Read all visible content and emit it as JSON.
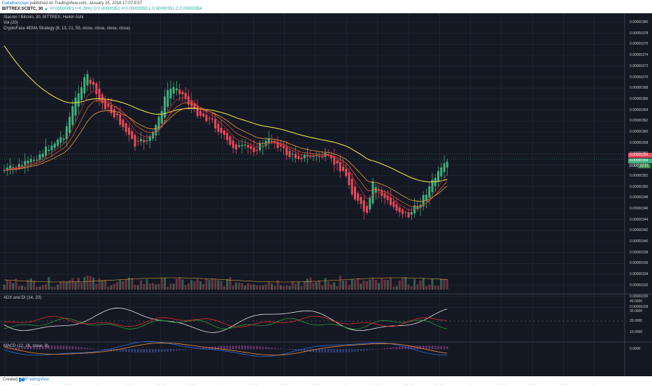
{
  "header": {
    "author": "EakaBarooqai",
    "published_text": "published on TradingView.com, January 25, 2018 17:07 EST",
    "symbol": "BITTREX:SCBTC, 30",
    "change": "▲ +0.00000001 (+0.28%)",
    "ohlc_o": "O:0.00000351",
    "ohlc_h": "H:0.00000355",
    "ohlc_l": "L:0.00000351",
    "ohlc_c": "C:0.00000354"
  },
  "legend": {
    "title": "Siacoin / Bitcoin, 30, BITTREX, Heikin Ashi",
    "vol": "Vol (20)",
    "strategy": "CryptoFace 4EMA Strategy (8, 13, 21, 55, close, close, close, close)"
  },
  "adx_legend": "ADX and DI (14, 20)",
  "macd_legend": "MACD (12, 26, close, 9)",
  "price_axis": [
    "0.00000380",
    "0.00000378",
    "0.00000376",
    "0.00000374",
    "0.00000372",
    "0.00000370",
    "0.00000368",
    "0.00000366",
    "0.00000364",
    "0.00000362",
    "0.00000360",
    "0.00000358",
    "0.00000356",
    "0.00000354",
    "0.00000352",
    "0.00000350",
    "0.00000348",
    "0.00000346",
    "0.00000344",
    "0.00000342",
    "0.00000340",
    "0.00000338",
    "0.00000336",
    "0.00000334",
    "0.00000332",
    "0.00000330",
    "0.00000328"
  ],
  "price_badge_1": "0.00000354",
  "price_badge_2": "0.00000354",
  "price_badge_3": "0.00000354",
  "countdown": "22:01",
  "adx_axis": [
    "40.0000",
    "30.0000",
    "20.0000",
    "10.0000"
  ],
  "macd_axis": [
    "0.0000"
  ],
  "time_axis": [
    {
      "label": "00",
      "bold": false
    },
    {
      "label": "12:00",
      "bold": false
    },
    {
      "label": "18:00",
      "bold": false
    },
    {
      "label": "23",
      "bold": true
    },
    {
      "label": "06:00",
      "bold": false
    },
    {
      "label": "12:00",
      "bold": false
    },
    {
      "label": "18:00",
      "bold": false
    },
    {
      "label": "24",
      "bold": true
    },
    {
      "label": "06:00",
      "bold": false
    },
    {
      "label": "12:00",
      "bold": false
    },
    {
      "label": "18:00",
      "bold": false
    },
    {
      "label": "25",
      "bold": true
    },
    {
      "label": "06:00",
      "bold": false
    },
    {
      "label": "12:00",
      "bold": false
    },
    {
      "label": "18:00",
      "bold": false
    },
    {
      "label": "26",
      "bold": true
    },
    {
      "label": "06:00",
      "bold": false
    },
    {
      "label": "12:00",
      "bold": false
    },
    {
      "label": "18:00",
      "bold": false
    },
    {
      "label": "27",
      "bold": true
    }
  ],
  "footer": {
    "created_with": "Created with",
    "brand": "TradingView"
  },
  "colors": {
    "background": "#141823",
    "up": "#3fb17b",
    "down": "#e8495b",
    "ema55": "#e5e04a",
    "ema21": "#f2a03d",
    "ema13": "#e25e33",
    "ema8": "#c8283d",
    "adx": "#e9e9e9",
    "di_plus": "#2a9a3a",
    "di_minus": "#e02c2c",
    "macd": "#2f6bd6",
    "signal": "#f09040"
  }
}
